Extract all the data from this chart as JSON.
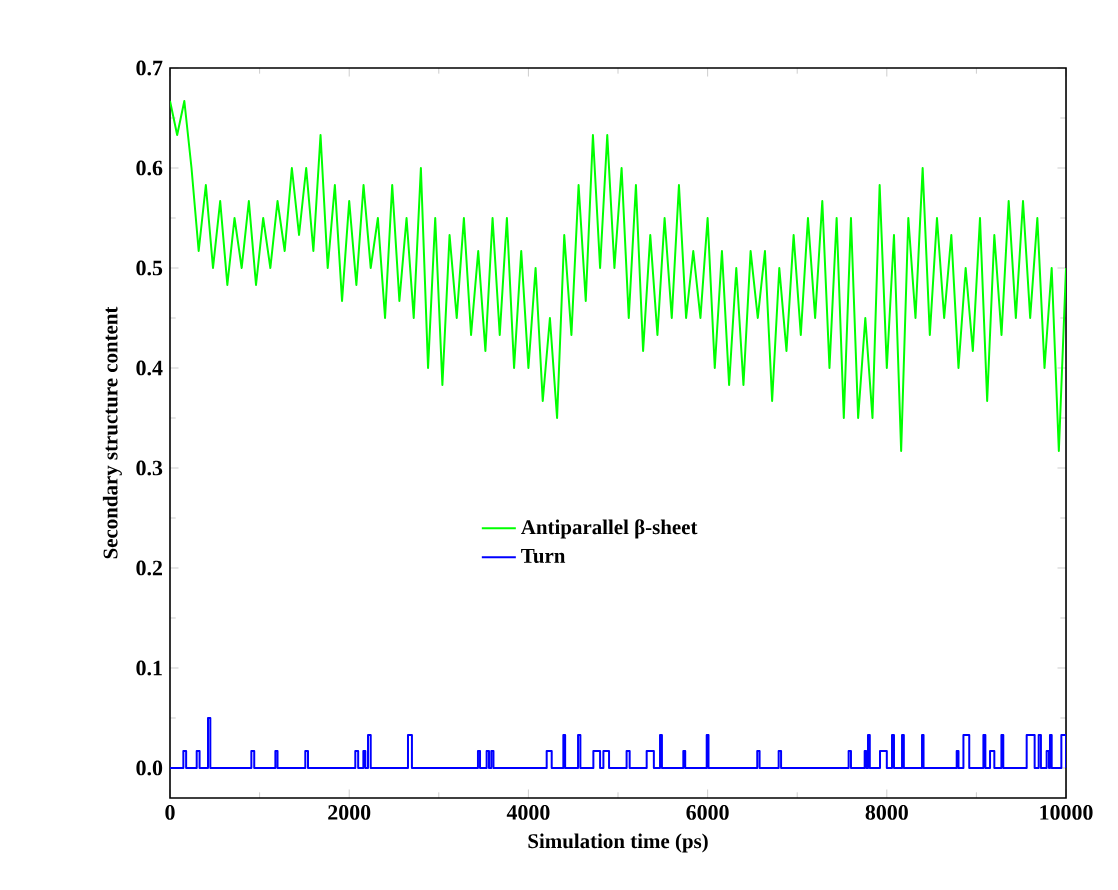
{
  "chart_data": {
    "type": "line",
    "xlabel": "Simulation time (ps)",
    "ylabel": "Secondary structure content",
    "xlim": [
      0,
      10000
    ],
    "ylim": [
      -0.03,
      0.7
    ],
    "xticks": [
      0,
      2000,
      4000,
      6000,
      8000,
      10000
    ],
    "yticks": [
      {
        "value": 0,
        "label": "0.0"
      },
      0.1,
      0.2,
      0.3,
      0.4,
      0.5,
      0.6,
      0.7
    ],
    "legend": "center",
    "grid": false,
    "series": [
      {
        "name": "Antiparallel β-sheet",
        "color": "#00ff00",
        "x": [
          0,
          80,
          160,
          240,
          320,
          400,
          480,
          560,
          640,
          720,
          800,
          880,
          960,
          1040,
          1120,
          1200,
          1280,
          1360,
          1440,
          1520,
          1600,
          1680,
          1760,
          1840,
          1920,
          2000,
          2080,
          2160,
          2240,
          2320,
          2400,
          2480,
          2560,
          2640,
          2720,
          2800,
          2880,
          2960,
          3040,
          3120,
          3200,
          3280,
          3360,
          3440,
          3520,
          3600,
          3680,
          3760,
          3840,
          3920,
          4000,
          4080,
          4160,
          4240,
          4320,
          4400,
          4480,
          4560,
          4640,
          4720,
          4800,
          4880,
          4960,
          5040,
          5120,
          5200,
          5280,
          5360,
          5440,
          5520,
          5600,
          5680,
          5760,
          5840,
          5920,
          6000,
          6080,
          6160,
          6240,
          6320,
          6400,
          6480,
          6560,
          6640,
          6720,
          6800,
          6880,
          6960,
          7040,
          7120,
          7200,
          7280,
          7360,
          7440,
          7520,
          7600,
          7680,
          7760,
          7840,
          7920,
          8000,
          8080,
          8160,
          8240,
          8320,
          8400,
          8480,
          8560,
          8640,
          8720,
          8800,
          8880,
          8960,
          9040,
          9120,
          9200,
          9280,
          9360,
          9440,
          9520,
          9600,
          9680,
          9760,
          9840,
          9920,
          10000
        ],
        "values": [
          0.667,
          0.633,
          0.667,
          0.6,
          0.517,
          0.583,
          0.5,
          0.567,
          0.483,
          0.55,
          0.5,
          0.567,
          0.483,
          0.55,
          0.5,
          0.567,
          0.517,
          0.6,
          0.533,
          0.6,
          0.517,
          0.633,
          0.5,
          0.583,
          0.467,
          0.567,
          0.483,
          0.583,
          0.5,
          0.55,
          0.45,
          0.583,
          0.467,
          0.55,
          0.45,
          0.6,
          0.4,
          0.55,
          0.383,
          0.533,
          0.45,
          0.55,
          0.433,
          0.517,
          0.417,
          0.55,
          0.433,
          0.55,
          0.4,
          0.517,
          0.4,
          0.5,
          0.367,
          0.45,
          0.35,
          0.533,
          0.433,
          0.583,
          0.467,
          0.633,
          0.5,
          0.633,
          0.5,
          0.6,
          0.45,
          0.583,
          0.417,
          0.533,
          0.433,
          0.55,
          0.45,
          0.583,
          0.45,
          0.517,
          0.45,
          0.55,
          0.4,
          0.517,
          0.383,
          0.5,
          0.383,
          0.517,
          0.45,
          0.517,
          0.367,
          0.5,
          0.417,
          0.533,
          0.433,
          0.55,
          0.45,
          0.567,
          0.4,
          0.55,
          0.35,
          0.55,
          0.35,
          0.45,
          0.35,
          0.583,
          0.4,
          0.533,
          0.317,
          0.55,
          0.45,
          0.6,
          0.433,
          0.55,
          0.45,
          0.533,
          0.4,
          0.5,
          0.417,
          0.55,
          0.367,
          0.533,
          0.433,
          0.567,
          0.45,
          0.567,
          0.45,
          0.55,
          0.4,
          0.5,
          0.317,
          0.5
        ]
      },
      {
        "name": "Turn",
        "color": "#0000ff",
        "type": "step",
        "x": [
          0,
          149,
          180,
          298,
          330,
          424,
          450,
          908,
          940,
          1176,
          1200,
          1510,
          1540,
          2068,
          2100,
          2158,
          2180,
          2210,
          2240,
          2656,
          2700,
          3437,
          3460,
          3534,
          3560,
          3586,
          3610,
          4204,
          4260,
          4390,
          4410,
          4554,
          4580,
          4725,
          4800,
          4837,
          4900,
          5096,
          5130,
          5320,
          5400,
          5469,
          5490,
          5729,
          5750,
          5990,
          6010,
          6554,
          6580,
          6793,
          6820,
          7574,
          7600,
          7753,
          7770,
          7790,
          7810,
          7924,
          8000,
          8058,
          8080,
          8170,
          8190,
          8393,
          8410,
          8780,
          8800,
          8855,
          8920,
          9078,
          9100,
          9152,
          9200,
          9279,
          9300,
          9561,
          9650,
          9695,
          9720,
          9784,
          9810,
          9821,
          9840,
          9948,
          10000
        ],
        "values": [
          0,
          0.017,
          0,
          0.017,
          0,
          0.05,
          0,
          0.017,
          0,
          0.017,
          0,
          0.017,
          0,
          0.017,
          0,
          0.017,
          0,
          0.033,
          0,
          0.033,
          0,
          0.017,
          0,
          0.017,
          0,
          0.017,
          0,
          0.017,
          0,
          0.033,
          0,
          0.033,
          0,
          0.017,
          0,
          0.017,
          0,
          0.017,
          0,
          0.017,
          0,
          0.033,
          0,
          0.017,
          0,
          0.033,
          0,
          0.017,
          0,
          0.017,
          0,
          0.017,
          0,
          0.017,
          0,
          0.033,
          0,
          0.017,
          0,
          0.033,
          0,
          0.033,
          0,
          0.033,
          0,
          0.017,
          0,
          0.033,
          0,
          0.033,
          0,
          0.017,
          0,
          0.033,
          0,
          0.033,
          0,
          0.033,
          0,
          0.017,
          0,
          0.033,
          0,
          0.033,
          0
        ]
      }
    ]
  }
}
